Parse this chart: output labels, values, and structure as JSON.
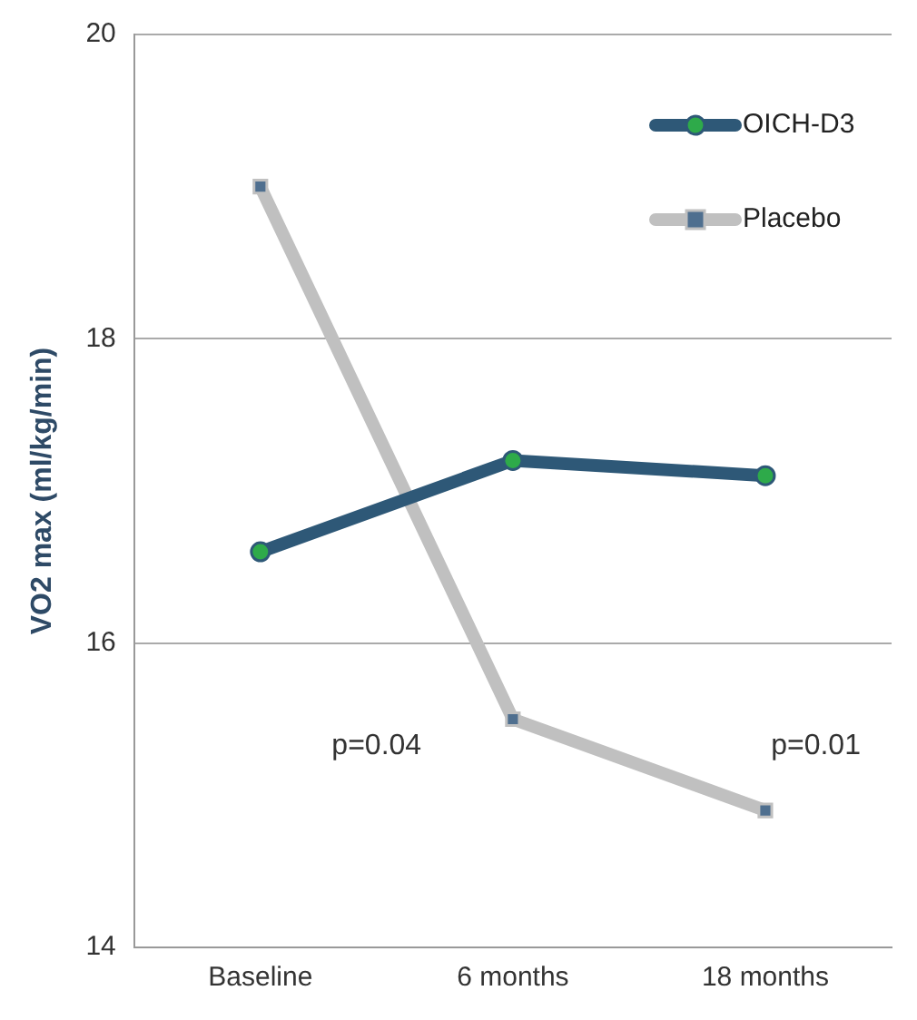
{
  "chart_data": {
    "type": "line",
    "ylabel": "VO2 max (ml/kg/min)",
    "categories": [
      "Baseline",
      "6 months",
      "18 months"
    ],
    "series": [
      {
        "name": "OICH-D3",
        "color": "#2e5877",
        "marker": "circle",
        "values": [
          16.6,
          17.2,
          17.1
        ]
      },
      {
        "name": "Placebo",
        "color": "#c0c0c0",
        "marker": "square",
        "values": [
          19.0,
          15.5,
          14.9
        ]
      }
    ],
    "ylim": [
      14,
      20
    ],
    "yticks": [
      14,
      16,
      18,
      20
    ],
    "grid": "y",
    "legend": "top right",
    "annotations": [
      "p=0.04",
      "p=0.01"
    ]
  }
}
